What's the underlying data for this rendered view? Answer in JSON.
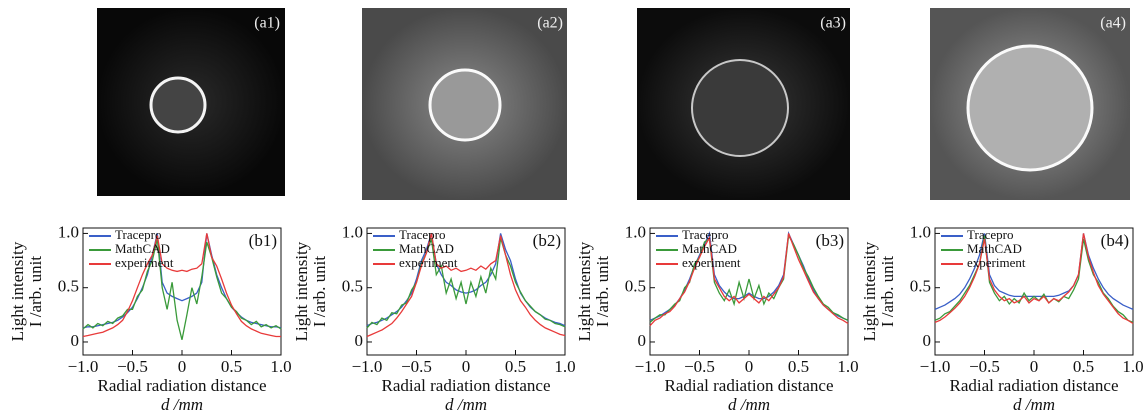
{
  "images": [
    {
      "label": "(a1)"
    },
    {
      "label": "(a2)"
    },
    {
      "label": "(a3)"
    },
    {
      "label": "(a4)"
    }
  ],
  "chart_data": [
    {
      "type": "line",
      "panel_label": "(b1)",
      "xlabel": "Radial radiation distance",
      "xlabel2": "d /mm",
      "ylabel": "Light intensity",
      "ylabel2": "I /arb. unit",
      "legend": "upper left",
      "xlim": [
        -1,
        1
      ],
      "ylim": [
        -0.12,
        1.05
      ],
      "xticks": [
        {
          "value": -1,
          "label": "−1.0"
        },
        {
          "value": -0.5,
          "label": "−0.5"
        },
        0,
        0.5,
        {
          "value": 1,
          "label": "1.0"
        }
      ],
      "yticks": [
        0,
        0.5,
        {
          "value": 1,
          "label": "1.0"
        }
      ],
      "x": [
        -1,
        -0.95,
        -0.9,
        -0.85,
        -0.8,
        -0.75,
        -0.7,
        -0.65,
        -0.6,
        -0.55,
        -0.5,
        -0.45,
        -0.4,
        -0.35,
        -0.3,
        -0.25,
        -0.2,
        -0.15,
        -0.1,
        -0.05,
        0,
        0.05,
        0.1,
        0.15,
        0.2,
        0.25,
        0.3,
        0.35,
        0.4,
        0.45,
        0.5,
        0.55,
        0.6,
        0.65,
        0.7,
        0.75,
        0.8,
        0.85,
        0.9,
        0.95,
        1
      ],
      "series": [
        {
          "name": "Tracepro",
          "color": "#3a5fc8",
          "values": [
            0.13,
            0.14,
            0.14,
            0.15,
            0.16,
            0.17,
            0.18,
            0.2,
            0.23,
            0.27,
            0.32,
            0.4,
            0.5,
            0.62,
            0.8,
            1.0,
            0.55,
            0.45,
            0.42,
            0.4,
            0.38,
            0.4,
            0.42,
            0.45,
            0.55,
            1.0,
            0.8,
            0.62,
            0.5,
            0.4,
            0.32,
            0.27,
            0.23,
            0.2,
            0.18,
            0.17,
            0.16,
            0.15,
            0.14,
            0.14,
            0.13
          ]
        },
        {
          "name": "MathCAD",
          "color": "#3a9a3a",
          "values": [
            0.12,
            0.16,
            0.13,
            0.17,
            0.15,
            0.19,
            0.17,
            0.22,
            0.24,
            0.3,
            0.3,
            0.42,
            0.48,
            0.65,
            0.75,
            0.95,
            0.5,
            0.3,
            0.55,
            0.2,
            0.02,
            0.25,
            0.5,
            0.35,
            0.6,
            0.92,
            0.78,
            0.6,
            0.45,
            0.4,
            0.32,
            0.28,
            0.22,
            0.2,
            0.16,
            0.19,
            0.14,
            0.16,
            0.13,
            0.15,
            0.12
          ]
        },
        {
          "name": "experiment",
          "color": "#e83a3a",
          "values": [
            0.05,
            0.06,
            0.07,
            0.08,
            0.09,
            0.11,
            0.13,
            0.16,
            0.2,
            0.28,
            0.38,
            0.5,
            0.62,
            0.72,
            0.8,
            0.98,
            0.72,
            0.68,
            0.66,
            0.65,
            0.66,
            0.65,
            0.67,
            0.68,
            0.72,
            1.0,
            0.78,
            0.7,
            0.58,
            0.45,
            0.34,
            0.26,
            0.19,
            0.15,
            0.12,
            0.1,
            0.08,
            0.07,
            0.06,
            0.05,
            0.05
          ]
        }
      ]
    },
    {
      "type": "line",
      "panel_label": "(b2)",
      "xlabel": "Radial radiation distance",
      "xlabel2": "d /mm",
      "ylabel": "Light intensity",
      "ylabel2": "I /arb. unit",
      "legend": "upper left",
      "xlim": [
        -1,
        1
      ],
      "ylim": [
        -0.12,
        1.05
      ],
      "xticks": [
        {
          "value": -1,
          "label": "−1.0"
        },
        {
          "value": -0.5,
          "label": "−0.5"
        },
        0,
        0.5,
        {
          "value": 1,
          "label": "1.0"
        }
      ],
      "yticks": [
        0,
        0.5,
        {
          "value": 1,
          "label": "1.0"
        }
      ],
      "x": [
        -1,
        -0.95,
        -0.9,
        -0.85,
        -0.8,
        -0.75,
        -0.7,
        -0.65,
        -0.6,
        -0.55,
        -0.5,
        -0.45,
        -0.4,
        -0.35,
        -0.3,
        -0.25,
        -0.2,
        -0.15,
        -0.1,
        -0.05,
        0,
        0.05,
        0.1,
        0.15,
        0.2,
        0.25,
        0.3,
        0.35,
        0.4,
        0.45,
        0.5,
        0.55,
        0.6,
        0.65,
        0.7,
        0.75,
        0.8,
        0.85,
        0.9,
        0.95,
        1
      ],
      "series": [
        {
          "name": "Tracepro",
          "color": "#3a5fc8",
          "values": [
            0.15,
            0.17,
            0.18,
            0.2,
            0.22,
            0.25,
            0.28,
            0.32,
            0.38,
            0.45,
            0.58,
            0.75,
            0.85,
            1.0,
            0.72,
            0.62,
            0.55,
            0.52,
            0.48,
            0.46,
            0.45,
            0.46,
            0.48,
            0.52,
            0.55,
            0.62,
            0.72,
            1.0,
            0.85,
            0.75,
            0.58,
            0.45,
            0.38,
            0.32,
            0.28,
            0.25,
            0.22,
            0.2,
            0.18,
            0.17,
            0.15
          ]
        },
        {
          "name": "MathCAD",
          "color": "#3a9a3a",
          "values": [
            0.13,
            0.18,
            0.16,
            0.22,
            0.2,
            0.27,
            0.26,
            0.34,
            0.36,
            0.48,
            0.55,
            0.72,
            0.82,
            0.95,
            0.62,
            0.7,
            0.45,
            0.58,
            0.4,
            0.55,
            0.35,
            0.55,
            0.42,
            0.6,
            0.45,
            0.68,
            0.58,
            0.96,
            0.8,
            0.7,
            0.55,
            0.46,
            0.38,
            0.33,
            0.28,
            0.25,
            0.21,
            0.2,
            0.17,
            0.16,
            0.14
          ]
        },
        {
          "name": "experiment",
          "color": "#e83a3a",
          "values": [
            0.05,
            0.07,
            0.09,
            0.11,
            0.14,
            0.17,
            0.22,
            0.28,
            0.35,
            0.42,
            0.55,
            0.7,
            0.82,
            1.0,
            0.72,
            0.68,
            0.7,
            0.66,
            0.68,
            0.65,
            0.66,
            0.68,
            0.66,
            0.7,
            0.67,
            0.72,
            0.75,
            0.98,
            0.8,
            0.62,
            0.48,
            0.38,
            0.32,
            0.25,
            0.2,
            0.16,
            0.13,
            0.11,
            0.09,
            0.07,
            0.06
          ]
        }
      ]
    },
    {
      "type": "line",
      "panel_label": "(b3)",
      "xlabel": "Radial radiation distance",
      "xlabel2": "d /mm",
      "ylabel": "Light intensity",
      "ylabel2": "I /arb. unit",
      "legend": "upper left",
      "xlim": [
        -1,
        1
      ],
      "ylim": [
        -0.12,
        1.05
      ],
      "xticks": [
        {
          "value": -1,
          "label": "−1.0"
        },
        {
          "value": -0.5,
          "label": "−0.5"
        },
        0,
        0.5,
        {
          "value": 1,
          "label": "1.0"
        }
      ],
      "yticks": [
        0,
        0.5,
        {
          "value": 1,
          "label": "1.0"
        }
      ],
      "x": [
        -1,
        -0.95,
        -0.9,
        -0.85,
        -0.8,
        -0.75,
        -0.7,
        -0.65,
        -0.6,
        -0.55,
        -0.5,
        -0.45,
        -0.4,
        -0.35,
        -0.3,
        -0.25,
        -0.2,
        -0.15,
        -0.1,
        -0.05,
        0,
        0.05,
        0.1,
        0.15,
        0.2,
        0.25,
        0.3,
        0.35,
        0.4,
        0.45,
        0.5,
        0.55,
        0.6,
        0.65,
        0.7,
        0.75,
        0.8,
        0.85,
        0.9,
        0.95,
        1
      ],
      "series": [
        {
          "name": "Tracepro",
          "color": "#3a5fc8",
          "values": [
            0.2,
            0.22,
            0.24,
            0.27,
            0.3,
            0.34,
            0.4,
            0.48,
            0.58,
            0.7,
            0.8,
            0.9,
            1.0,
            0.62,
            0.52,
            0.46,
            0.42,
            0.4,
            0.4,
            0.42,
            0.45,
            0.42,
            0.4,
            0.4,
            0.42,
            0.46,
            0.52,
            0.62,
            1.0,
            0.9,
            0.8,
            0.7,
            0.58,
            0.48,
            0.4,
            0.34,
            0.3,
            0.27,
            0.24,
            0.22,
            0.2
          ]
        },
        {
          "name": "MathCAD",
          "color": "#3a9a3a",
          "values": [
            0.18,
            0.22,
            0.25,
            0.25,
            0.3,
            0.35,
            0.38,
            0.5,
            0.55,
            0.72,
            0.78,
            0.92,
            0.95,
            0.55,
            0.45,
            0.38,
            0.48,
            0.35,
            0.55,
            0.4,
            0.58,
            0.4,
            0.52,
            0.35,
            0.45,
            0.4,
            0.5,
            0.58,
            0.98,
            0.9,
            0.8,
            0.68,
            0.6,
            0.5,
            0.42,
            0.35,
            0.32,
            0.27,
            0.25,
            0.22,
            0.2
          ]
        },
        {
          "name": "experiment",
          "color": "#e83a3a",
          "values": [
            0.15,
            0.2,
            0.22,
            0.26,
            0.28,
            0.33,
            0.4,
            0.46,
            0.56,
            0.68,
            0.78,
            0.88,
            0.96,
            0.58,
            0.5,
            0.42,
            0.38,
            0.42,
            0.36,
            0.4,
            0.44,
            0.4,
            0.36,
            0.42,
            0.38,
            0.44,
            0.5,
            0.6,
            1.0,
            0.88,
            0.76,
            0.66,
            0.56,
            0.46,
            0.4,
            0.34,
            0.3,
            0.26,
            0.22,
            0.2,
            0.17
          ]
        }
      ]
    },
    {
      "type": "line",
      "panel_label": "(b4)",
      "xlabel": "Radial radiation distance",
      "xlabel2": "d /mm",
      "ylabel": "Light intensity",
      "ylabel2": "I /arb. unit",
      "legend": "upper left",
      "xlim": [
        -1,
        1
      ],
      "ylim": [
        -0.12,
        1.05
      ],
      "xticks": [
        {
          "value": -1,
          "label": "−1.0"
        },
        {
          "value": -0.5,
          "label": "−0.5"
        },
        0,
        0.5,
        {
          "value": 1,
          "label": "1.0"
        }
      ],
      "yticks": [
        0,
        0.5,
        {
          "value": 1,
          "label": "1.0"
        }
      ],
      "x": [
        -1,
        -0.95,
        -0.9,
        -0.85,
        -0.8,
        -0.75,
        -0.7,
        -0.65,
        -0.6,
        -0.55,
        -0.5,
        -0.45,
        -0.4,
        -0.35,
        -0.3,
        -0.25,
        -0.2,
        -0.15,
        -0.1,
        -0.05,
        0,
        0.05,
        0.1,
        0.15,
        0.2,
        0.25,
        0.3,
        0.35,
        0.4,
        0.45,
        0.5,
        0.55,
        0.6,
        0.65,
        0.7,
        0.75,
        0.8,
        0.85,
        0.9,
        0.95,
        1
      ],
      "series": [
        {
          "name": "Tracepro",
          "color": "#3a5fc8",
          "values": [
            0.3,
            0.32,
            0.34,
            0.37,
            0.4,
            0.44,
            0.5,
            0.58,
            0.68,
            0.8,
            1.0,
            0.62,
            0.52,
            0.47,
            0.45,
            0.43,
            0.42,
            0.42,
            0.42,
            0.42,
            0.42,
            0.42,
            0.42,
            0.42,
            0.42,
            0.43,
            0.45,
            0.47,
            0.52,
            0.62,
            1.0,
            0.8,
            0.68,
            0.58,
            0.5,
            0.44,
            0.4,
            0.37,
            0.34,
            0.32,
            0.3
          ]
        },
        {
          "name": "MathCAD",
          "color": "#3a9a3a",
          "values": [
            0.2,
            0.22,
            0.26,
            0.28,
            0.33,
            0.38,
            0.45,
            0.52,
            0.62,
            0.72,
            0.98,
            0.55,
            0.45,
            0.38,
            0.42,
            0.35,
            0.4,
            0.36,
            0.45,
            0.38,
            0.42,
            0.38,
            0.44,
            0.36,
            0.4,
            0.37,
            0.42,
            0.4,
            0.48,
            0.58,
            0.95,
            0.75,
            0.62,
            0.55,
            0.45,
            0.4,
            0.33,
            0.28,
            0.25,
            0.2,
            0.18
          ]
        },
        {
          "name": "experiment",
          "color": "#e83a3a",
          "values": [
            0.18,
            0.2,
            0.23,
            0.27,
            0.31,
            0.36,
            0.42,
            0.5,
            0.6,
            0.72,
            0.95,
            0.58,
            0.48,
            0.42,
            0.38,
            0.4,
            0.36,
            0.38,
            0.42,
            0.36,
            0.4,
            0.38,
            0.42,
            0.36,
            0.4,
            0.38,
            0.42,
            0.46,
            0.52,
            0.62,
            1.0,
            0.78,
            0.64,
            0.52,
            0.44,
            0.38,
            0.32,
            0.26,
            0.22,
            0.2,
            0.17
          ]
        }
      ]
    }
  ]
}
